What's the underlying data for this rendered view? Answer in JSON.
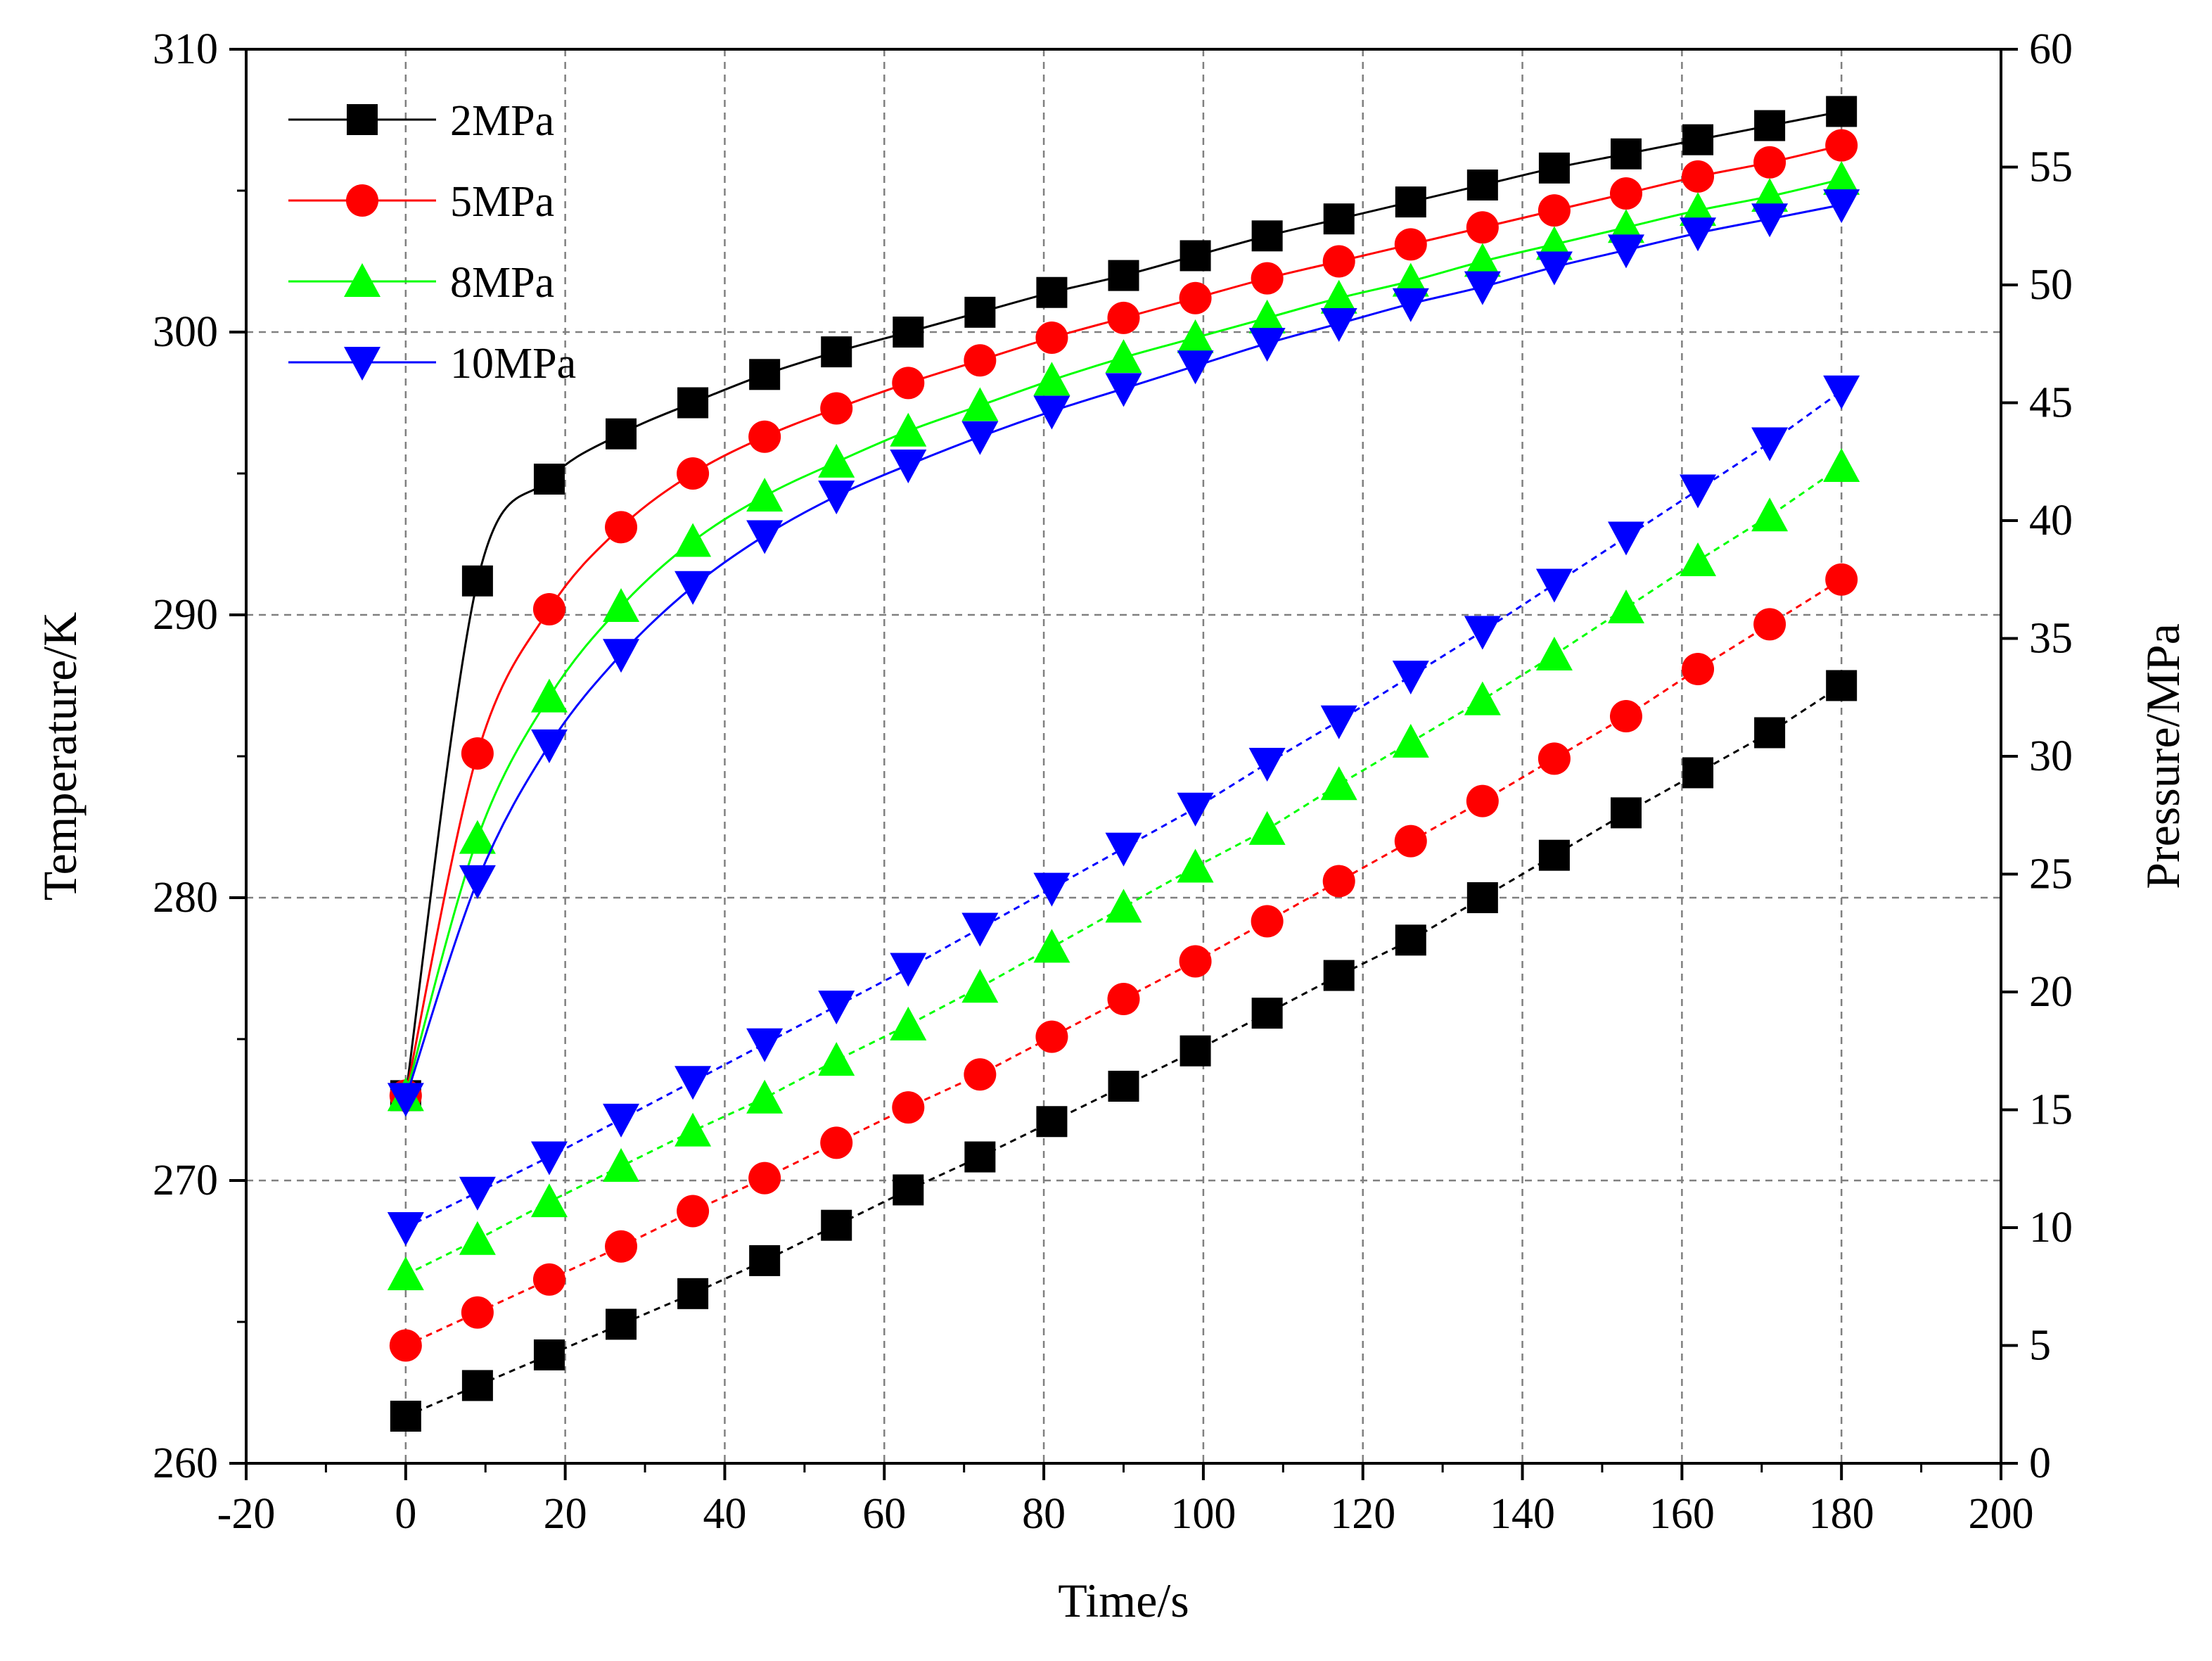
{
  "chart_data": {
    "type": "line",
    "title": "",
    "xlabel": "Time/s",
    "ylabel_left": "Temperature/K",
    "ylabel_right": "Pressure/MPa",
    "xlim": [
      -20,
      200
    ],
    "ylim_left": [
      260,
      310
    ],
    "ylim_right": [
      0,
      60
    ],
    "x_ticks": [
      "-20",
      "0",
      "20",
      "40",
      "60",
      "80",
      "100",
      "120",
      "140",
      "160",
      "180",
      "200"
    ],
    "y_left_ticks": [
      "260",
      "270",
      "280",
      "290",
      "300",
      "310"
    ],
    "y_right_ticks": [
      "0",
      "5",
      "10",
      "15",
      "20",
      "25",
      "30",
      "35",
      "40",
      "45",
      "50",
      "55",
      "60"
    ],
    "grid": true,
    "legend_position": "top-left",
    "x": [
      0,
      9,
      18,
      27,
      36,
      45,
      54,
      63,
      72,
      81,
      90,
      99,
      108,
      117,
      126,
      135,
      144,
      153,
      162,
      171,
      180
    ],
    "series": [
      {
        "name": "2MPa",
        "color": "#000000",
        "marker": "square",
        "temperature": [
          273.0,
          291.2,
          294.8,
          296.4,
          297.5,
          298.5,
          299.3,
          300.0,
          300.7,
          301.4,
          302.0,
          302.7,
          303.4,
          304.0,
          304.6,
          305.2,
          305.8,
          306.3,
          306.8,
          307.3,
          307.8
        ],
        "pressure": [
          2.0,
          3.3,
          4.6,
          5.9,
          7.2,
          8.6,
          10.1,
          11.6,
          13.0,
          14.5,
          16.0,
          17.5,
          19.1,
          20.7,
          22.2,
          24.0,
          25.8,
          27.6,
          29.3,
          31.0,
          33.0
        ]
      },
      {
        "name": "5MPa",
        "color": "#ff0000",
        "marker": "circle",
        "temperature": [
          273.0,
          285.1,
          290.2,
          293.1,
          295.0,
          296.3,
          297.3,
          298.2,
          299.0,
          299.8,
          300.5,
          301.2,
          301.9,
          302.5,
          303.1,
          303.7,
          304.3,
          304.9,
          305.5,
          306.0,
          306.6
        ],
        "pressure": [
          5.0,
          6.4,
          7.8,
          9.2,
          10.7,
          12.1,
          13.6,
          15.1,
          16.5,
          18.1,
          19.7,
          21.3,
          23.0,
          24.7,
          26.4,
          28.1,
          29.9,
          31.7,
          33.7,
          35.6,
          37.5
        ]
      },
      {
        "name": "8MPa",
        "color": "#00ff00",
        "marker": "triangle-up",
        "temperature": [
          273.0,
          282.1,
          287.1,
          290.3,
          292.6,
          294.2,
          295.4,
          296.5,
          297.4,
          298.3,
          299.1,
          299.8,
          300.5,
          301.2,
          301.8,
          302.5,
          303.1,
          303.7,
          304.3,
          304.8,
          305.4
        ],
        "pressure": [
          8.0,
          9.5,
          11.1,
          12.6,
          14.1,
          15.5,
          17.1,
          18.6,
          20.2,
          21.9,
          23.6,
          25.3,
          26.9,
          28.8,
          30.6,
          32.4,
          34.3,
          36.3,
          38.3,
          40.2,
          42.3
        ]
      },
      {
        "name": "10MPa",
        "color": "#0000ff",
        "marker": "triangle-down",
        "temperature": [
          272.9,
          280.6,
          285.4,
          288.6,
          291.0,
          292.8,
          294.2,
          295.3,
          296.3,
          297.2,
          298.0,
          298.8,
          299.6,
          300.3,
          301.0,
          301.6,
          302.3,
          302.9,
          303.5,
          304.0,
          304.5
        ],
        "pressure": [
          10.0,
          11.5,
          13.0,
          14.6,
          16.2,
          17.8,
          19.4,
          21.0,
          22.7,
          24.4,
          26.1,
          27.8,
          29.7,
          31.5,
          33.4,
          35.3,
          37.3,
          39.3,
          41.3,
          43.3,
          45.5
        ]
      }
    ]
  }
}
